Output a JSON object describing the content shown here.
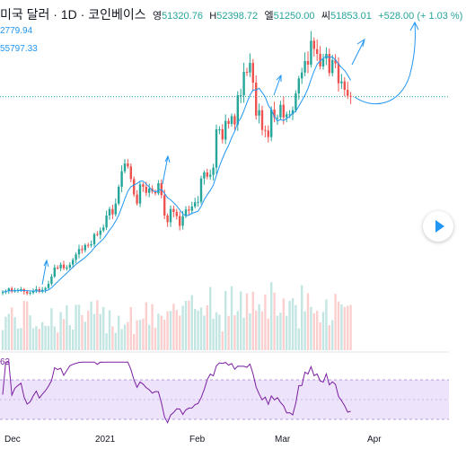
{
  "header": {
    "title": "미국 달러 · 1D · 코인베이스",
    "open_label": "영",
    "open_value": "51320.76",
    "high_label": "H",
    "high_value": "52398.72",
    "low_label": "엘",
    "low_value": "51250.00",
    "close_label": "씨",
    "close_value": "51853.01",
    "change": "+528.00 (+ 1.03 %)"
  },
  "indicators": {
    "ma1_value": "2779.94",
    "ma2_value": "55797.33",
    "rsi_value": "63"
  },
  "colors": {
    "up": "#26a69a",
    "down": "#ef5350",
    "ma": "#2196f3",
    "rsi": "#7b1fa2",
    "rsi_band": "#ede3fa"
  },
  "chart_data": {
    "type": "candlestick",
    "x_ticks": [
      "Dec",
      "2021",
      "Feb",
      "Mar",
      "Apr"
    ],
    "y_range": [
      17000,
      62000
    ],
    "reference_price": 51853.01,
    "close": [
      19200,
      19400,
      19800,
      19300,
      19500,
      19600,
      19700,
      19300,
      19000,
      19100,
      19400,
      19700,
      19300,
      19600,
      19900,
      20600,
      21800,
      23300,
      23200,
      23800,
      23200,
      23300,
      23800,
      24600,
      25500,
      26400,
      26200,
      27100,
      27000,
      27200,
      28900,
      28800,
      29500,
      30000,
      32000,
      33100,
      32200,
      34000,
      36800,
      39400,
      40700,
      40200,
      38100,
      35500,
      34000,
      37200,
      36800,
      35800,
      36500,
      36000,
      35700,
      37400,
      35400,
      32000,
      30900,
      33100,
      32600,
      31900,
      30300,
      31900,
      33000,
      32800,
      33500,
      34200,
      34300,
      38200,
      39200,
      38500,
      38800,
      40000,
      46400,
      46400,
      44700,
      47800,
      47300,
      48600,
      47200,
      52100,
      52100,
      56000,
      55900,
      57500,
      54200,
      48700,
      49600,
      46300,
      46200,
      45100,
      49700,
      48400,
      48400,
      50500,
      48400,
      48900,
      48900,
      49600,
      52400,
      54900,
      55900,
      57800,
      57200,
      61200,
      59800,
      59000,
      56900,
      58200,
      59000,
      55800,
      58000,
      57400,
      54100,
      54400,
      53000,
      52000,
      51853
    ]
  }
}
